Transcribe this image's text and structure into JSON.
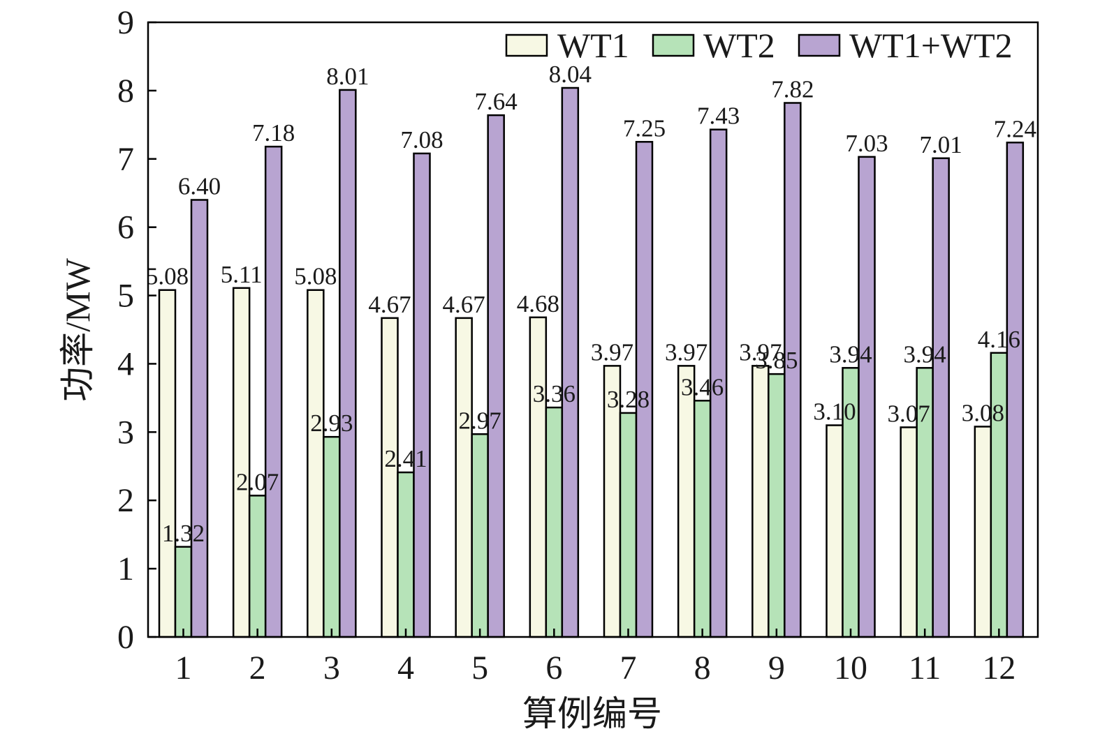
{
  "chart_data": {
    "type": "bar",
    "title": "",
    "xlabel": "算例编号",
    "ylabel": "功率/MW",
    "ylim": [
      0,
      9
    ],
    "yticks": [
      "0",
      "1",
      "2",
      "3",
      "4",
      "5",
      "6",
      "7",
      "8",
      "9"
    ],
    "categories": [
      "1",
      "2",
      "3",
      "4",
      "5",
      "6",
      "7",
      "8",
      "9",
      "10",
      "11",
      "12"
    ],
    "legend_position": "top-right",
    "grid": false,
    "series": [
      {
        "name": "WT1",
        "color": "#f7f8e4",
        "values": [
          5.08,
          5.11,
          5.08,
          4.67,
          4.67,
          4.68,
          3.97,
          3.97,
          3.97,
          3.1,
          3.07,
          3.08
        ],
        "labels": [
          "5.08",
          "5.11",
          "5.08",
          "4.67",
          "4.67",
          "4.68",
          "3.97",
          "3.97",
          "3.97",
          "3.10",
          "3.07",
          "3.08"
        ]
      },
      {
        "name": "WT2",
        "color": "#b6e3b8",
        "values": [
          1.32,
          2.07,
          2.93,
          2.41,
          2.97,
          3.36,
          3.28,
          3.46,
          3.85,
          3.94,
          3.94,
          4.16
        ],
        "labels": [
          "1.32",
          "2.07",
          "2.93",
          "2.41",
          "2.97",
          "3.36",
          "3.28",
          "3.46",
          "3.85",
          "3.94",
          "3.94",
          "4.16"
        ]
      },
      {
        "name": "WT1+WT2",
        "color": "#b8a4d1",
        "values": [
          6.4,
          7.18,
          8.01,
          7.08,
          7.64,
          8.04,
          7.25,
          7.43,
          7.82,
          7.03,
          7.01,
          7.24
        ],
        "labels": [
          "6.40",
          "7.18",
          "8.01",
          "7.08",
          "7.64",
          "8.04",
          "7.25",
          "7.43",
          "7.82",
          "7.03",
          "7.01",
          "7.24"
        ]
      }
    ]
  }
}
